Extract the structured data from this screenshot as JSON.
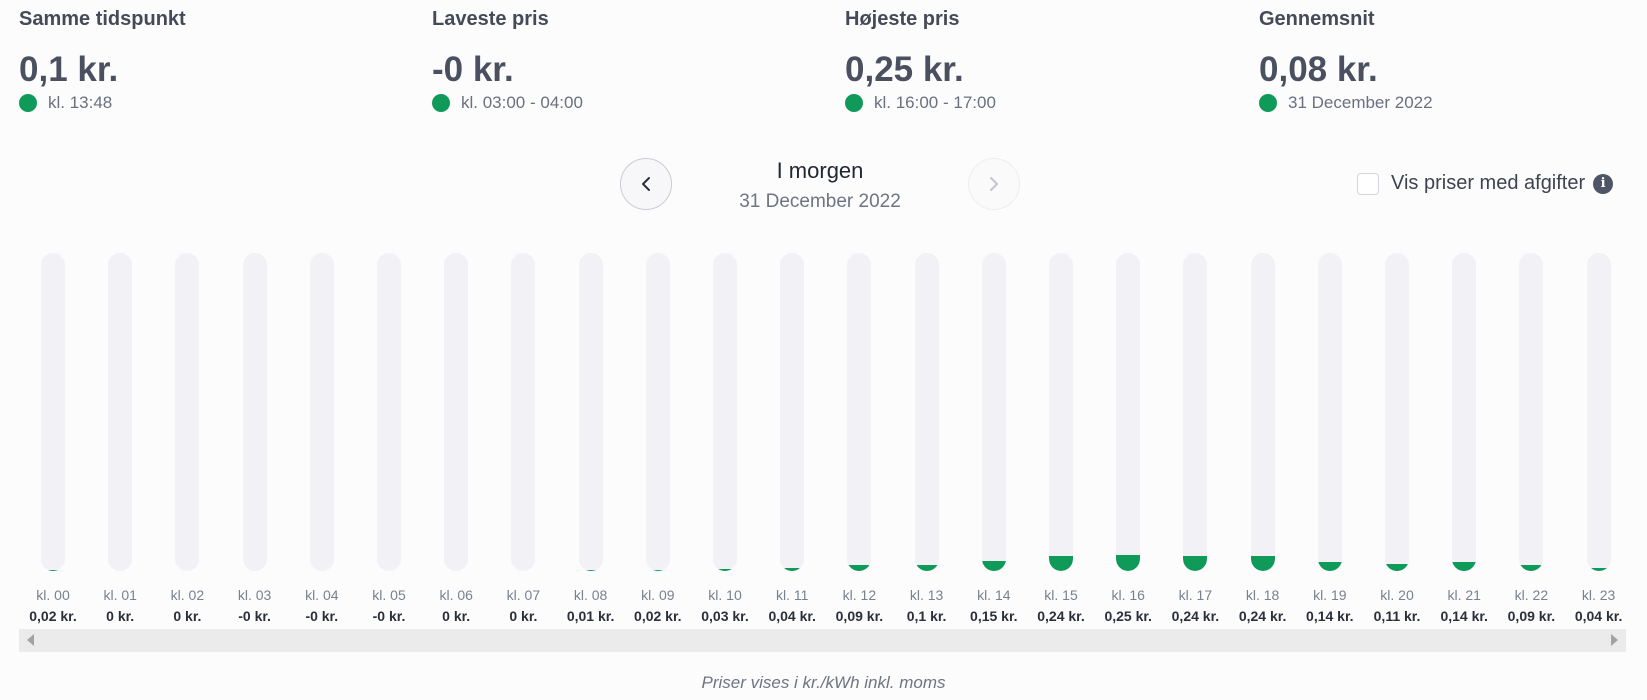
{
  "stats": [
    {
      "label": "Samme tidspunkt",
      "value": "0,1 kr.",
      "sub": "kl. 13:48"
    },
    {
      "label": "Laveste pris",
      "value": "-0 kr.",
      "sub": "kl. 03:00 - 04:00"
    },
    {
      "label": "Højeste pris",
      "value": "0,25 kr.",
      "sub": "kl. 16:00 - 17:00"
    },
    {
      "label": "Gennemsnit",
      "value": "0,08 kr.",
      "sub": "31 December 2022"
    }
  ],
  "nav": {
    "title": "I morgen",
    "date": "31 December 2022",
    "prev_icon": "chevron-left-icon",
    "next_icon": "chevron-right-icon"
  },
  "tax_toggle": {
    "label": "Vis priser med afgifter",
    "checked": false,
    "icon": "info-icon"
  },
  "footer_note": "Priser vises i kr./kWh inkl. moms",
  "colors": {
    "accent": "#0f9a5a",
    "track": "#f1f1f6"
  },
  "chart_data": {
    "type": "bar",
    "categories": [
      "kl. 00",
      "kl. 01",
      "kl. 02",
      "kl. 03",
      "kl. 04",
      "kl. 05",
      "kl. 06",
      "kl. 07",
      "kl. 08",
      "kl. 09",
      "kl. 10",
      "kl. 11",
      "kl. 12",
      "kl. 13",
      "kl. 14",
      "kl. 15",
      "kl. 16",
      "kl. 17",
      "kl. 18",
      "kl. 19",
      "kl. 20",
      "kl. 21",
      "kl. 22",
      "kl. 23"
    ],
    "values": [
      0.02,
      0,
      0,
      -0.001,
      -0.001,
      -0.001,
      0,
      0,
      0.01,
      0.02,
      0.03,
      0.04,
      0.09,
      0.1,
      0.15,
      0.24,
      0.25,
      0.24,
      0.24,
      0.14,
      0.11,
      0.14,
      0.09,
      0.04
    ],
    "value_labels": [
      "0,02 kr.",
      "0 kr.",
      "0 kr.",
      "-0 kr.",
      "-0 kr.",
      "-0 kr.",
      "0 kr.",
      "0 kr.",
      "0,01 kr.",
      "0,02 kr.",
      "0,03 kr.",
      "0,04 kr.",
      "0,09 kr.",
      "0,1 kr.",
      "0,15 kr.",
      "0,24 kr.",
      "0,25 kr.",
      "0,24 kr.",
      "0,24 kr.",
      "0,14 kr.",
      "0,11 kr.",
      "0,14 kr.",
      "0,09 kr.",
      "0,04 kr."
    ],
    "ylim": [
      0,
      5
    ]
  }
}
